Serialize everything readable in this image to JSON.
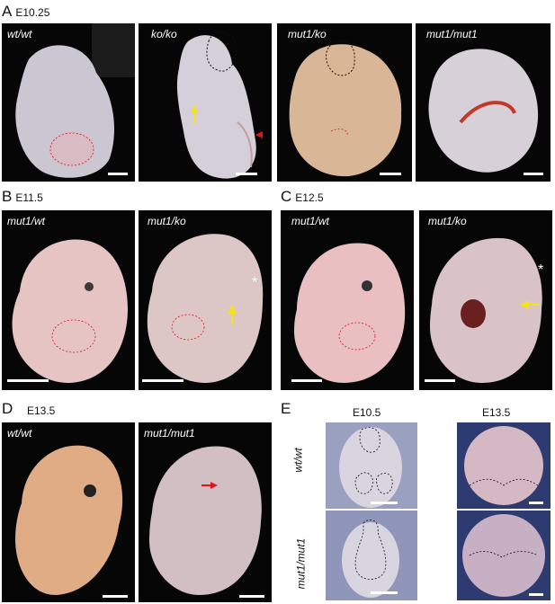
{
  "figure": {
    "panel_A": {
      "letter": "A",
      "stage": "E10.25",
      "genotypes": [
        "wt/wt",
        "ko/ko",
        "mut1/ko",
        "mut1/mut1"
      ]
    },
    "panel_B": {
      "letter": "B",
      "stage": "E11.5",
      "genotypes": [
        "mut1/wt",
        "mut1/ko"
      ]
    },
    "panel_C": {
      "letter": "C",
      "stage": "E12.5",
      "genotypes": [
        "mut1/wt",
        "mut1/ko"
      ]
    },
    "panel_D": {
      "letter": "D",
      "stage": "E13.5",
      "genotypes": [
        "wt/wt",
        "mut1/mut1"
      ]
    },
    "panel_E": {
      "letter": "E",
      "stages": [
        "E10.5",
        "E13.5"
      ],
      "genotypes": [
        "wt/wt",
        "mut1/mut1"
      ]
    },
    "asterisk": "*",
    "colors": {
      "embryo_pale": "#cfcbd4",
      "embryo_pink": "#e8b8b0",
      "embryo_tan": "#d9a684",
      "dotted_outline": "#111111",
      "red_marker": "#e0141e",
      "yellow_arrow": "#f5e21a",
      "background": "#060606"
    }
  }
}
